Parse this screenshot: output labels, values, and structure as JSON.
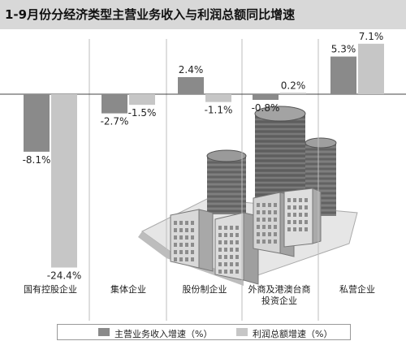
{
  "title": "1-9月份分经济类型主营业务收入与利润总额同比增速",
  "colors": {
    "revenue": "#8a8a8a",
    "profit": "#c6c6c6"
  },
  "chart_data": {
    "type": "bar",
    "categories": [
      "国有控股企业",
      "集体企业",
      "股份制企业",
      "外商及港澳台商\n投资企业",
      "私营企业"
    ],
    "series": [
      {
        "name": "主营业务收入增速（%）",
        "values": [
          -8.1,
          -2.7,
          2.4,
          -0.8,
          5.3
        ],
        "labels": [
          "-8.1%",
          "-2.7%",
          "2.4%",
          "-0.8%",
          "5.3%"
        ]
      },
      {
        "name": "利润总额增速（%）",
        "values": [
          -24.4,
          -1.5,
          -1.1,
          0.2,
          7.1
        ],
        "labels": [
          "-24.4%",
          "-1.5%",
          "-1.1%",
          "0.2%",
          "7.1%"
        ]
      }
    ],
    "ylim": [
      -28,
      10
    ],
    "grid": true,
    "legend_position": "bottom"
  }
}
